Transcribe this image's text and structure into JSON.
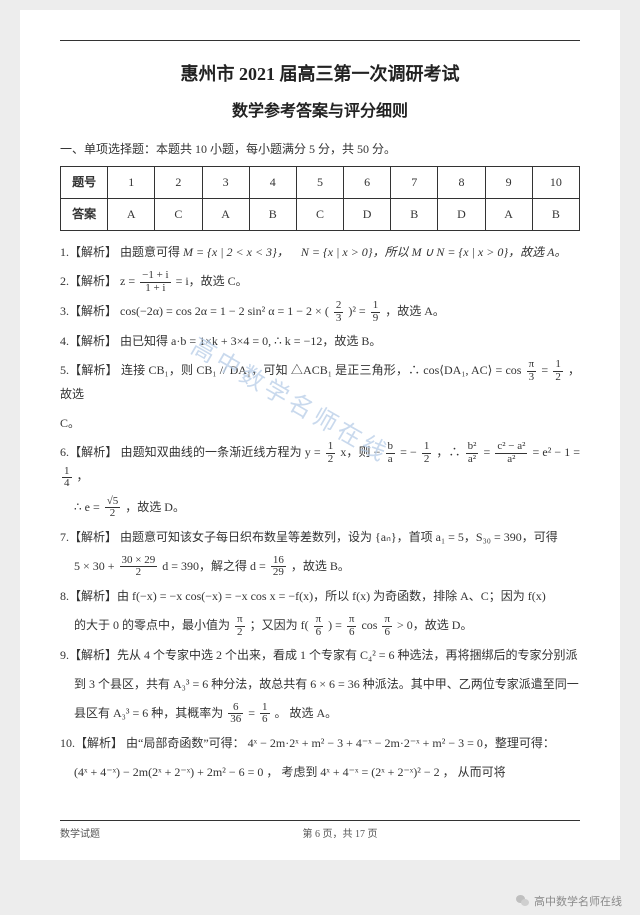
{
  "title": "惠州市 2021 届高三第一次调研考试",
  "subtitle": "数学参考答案与评分细则",
  "section_heading": "一、单项选择题：本题共 10 小题，每小题满分 5 分，共 50 分。",
  "table": {
    "row1_label": "题号",
    "row2_label": "答案",
    "columns": [
      "1",
      "2",
      "3",
      "4",
      "5",
      "6",
      "7",
      "8",
      "9",
      "10"
    ],
    "answers": [
      "A",
      "C",
      "A",
      "B",
      "C",
      "D",
      "B",
      "D",
      "A",
      "B"
    ],
    "border_color": "#333333",
    "font_size": 12
  },
  "solutions": {
    "s1": {
      "prefix": "1.【解析】 由题意可得 ",
      "body": "M = {x | 2 < x < 3}， N = {x | x > 0}，所以 M ∪ N = {x | x > 0}，故选 A。"
    },
    "s2": {
      "prefix": "2.【解析】 ",
      "frac_num": "−1 + i",
      "frac_den": "1 + i",
      "tail": " = i，故选 C。"
    },
    "s3": {
      "prefix": "3.【解析】 cos(−2α) = cos 2α = 1 − 2 sin² α = 1 − 2 × (",
      "frac1_num": "2",
      "frac1_den": "3",
      "mid": ")² = ",
      "frac2_num": "1",
      "frac2_den": "9",
      "tail": "，故选 A。"
    },
    "s4": {
      "line": "4.【解析】 由已知得 a·b = 1×k + 3×4 = 0, ∴ k = −12，故选 B。"
    },
    "s5": {
      "prefix": "5.【解析】 连接 CB₁，则 CB₁ // DA₁，可知 △ACB₁ 是正三角形，∴ cos⟨DA₁, AC⟩ = cos",
      "frac_num": "π",
      "frac_den": "3",
      "mid": " = ",
      "frac2_num": "1",
      "frac2_den": "2",
      "tail": "，故选",
      "tail2": "C。"
    },
    "s6": {
      "prefix": "6.【解析】 由题知双曲线的一条渐近线方程为 y = ",
      "frac0_num": "1",
      "frac0_den": "2",
      "mid0": " x，则 −",
      "frac1_num": "b",
      "frac1_den": "a",
      "mid1": " = −",
      "frac2_num": "1",
      "frac2_den": "2",
      "mid2": "，∴ ",
      "frac3_num": "b²",
      "frac3_den": "a²",
      "mid3": " = ",
      "frac4_num": "c² − a²",
      "frac4_den": "a²",
      "mid4": " = e² − 1 = ",
      "frac5_num": "1",
      "frac5_den": "4",
      "tail": "，",
      "line2_prefix": "∴ e = ",
      "line2_frac_num": "√5",
      "line2_frac_den": "2",
      "line2_tail": "，故选 D。"
    },
    "s7": {
      "line1": "7.【解析】 由题意可知该女子每日织布数呈等差数列，设为 {aₙ}，首项 a₁ = 5，S₃₀ = 390，可得",
      "line2_prefix": "5 × 30 + ",
      "frac1_num": "30 × 29",
      "frac1_den": "2",
      "mid": " d = 390，解之得 d = ",
      "frac2_num": "16",
      "frac2_den": "29",
      "tail": "，故选 B。"
    },
    "s8": {
      "line1": "8.【解析】由 f(−x) = −x cos(−x) = −x cos x = −f(x)，所以 f(x) 为奇函数，排除 A、C；因为 f(x)",
      "line2_prefix": "的大于 0 的零点中，最小值为 ",
      "frac1_num": "π",
      "frac1_den": "2",
      "mid1": "；又因为 f(",
      "frac2_num": "π",
      "frac2_den": "6",
      "mid2": ") = ",
      "frac3_num": "π",
      "frac3_den": "6",
      "mid3": " cos",
      "frac4_num": "π",
      "frac4_den": "6",
      "tail": " > 0，故选 D。"
    },
    "s9": {
      "line1": "9.【解析】先从 4 个专家中选 2 个出来，看成 1 个专家有 C₄² = 6 种选法，再将捆绑后的专家分别派",
      "line2": "到 3 个县区，共有 A₃³ = 6 种分法，故总共有 6 × 6 = 36 种派法。其中甲、乙两位专家派遣至同一",
      "line3_prefix": "县区有 A₃³ = 6 种，其概率为 ",
      "frac1_num": "6",
      "frac1_den": "36",
      "mid": " = ",
      "frac2_num": "1",
      "frac2_den": "6",
      "tail": "。 故选 A。"
    },
    "s10": {
      "line1": "10.【解析】 由“局部奇函数”可得： 4ˣ − 2m·2ˣ + m² − 3 + 4⁻ˣ − 2m·2⁻ˣ + m² − 3 = 0，整理可得：",
      "line2": "(4ˣ + 4⁻ˣ) − 2m(2ˣ + 2⁻ˣ) + 2m² − 6 = 0 ， 考虑到 4ˣ + 4⁻ˣ = (2ˣ + 2⁻ˣ)² − 2 ， 从而可将"
    }
  },
  "footer": {
    "left": "数学试题",
    "center": "第 6 页，共 17 页"
  },
  "watermark": "高中数学名师在线",
  "credit": "高中数学名师在线",
  "colors": {
    "page_bg": "#ffffff",
    "body_bg": "#ededed",
    "text": "#333333",
    "watermark": "#b7cde7",
    "credit": "#8a8a8a"
  },
  "typography": {
    "title_size_pt": 18,
    "subtitle_size_pt": 16,
    "body_size_pt": 12,
    "family": "SimSun"
  },
  "math_symbols": {
    "z_eq": "z = "
  }
}
